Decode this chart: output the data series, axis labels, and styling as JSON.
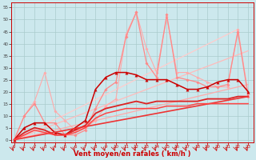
{
  "background_color": "#cce8ed",
  "grid_color": "#aacccc",
  "xlabel": "Vent moyen/en rafales ( km/h )",
  "xlabel_color": "#cc0000",
  "xlabel_fontsize": 6,
  "ytick_labels": [
    "0",
    "5",
    "10",
    "15",
    "20",
    "25",
    "30",
    "35",
    "40",
    "45",
    "50",
    "55"
  ],
  "yticks": [
    0,
    5,
    10,
    15,
    20,
    25,
    30,
    35,
    40,
    45,
    50,
    55
  ],
  "xticks": [
    0,
    1,
    2,
    3,
    4,
    5,
    6,
    7,
    8,
    9,
    10,
    11,
    12,
    13,
    14,
    15,
    16,
    17,
    18,
    19,
    20,
    21,
    22,
    23
  ],
  "xlim": [
    -0.3,
    23.5
  ],
  "ylim": [
    -1,
    57
  ],
  "series": [
    {
      "x": [
        0,
        23
      ],
      "y": [
        0,
        23
      ],
      "color": "#ffaaaa",
      "lw": 0.9,
      "marker": null,
      "ls": "-"
    },
    {
      "x": [
        0,
        23
      ],
      "y": [
        0,
        37
      ],
      "color": "#ffbbbb",
      "lw": 0.9,
      "marker": null,
      "ls": "-"
    },
    {
      "x": [
        0,
        22
      ],
      "y": [
        0,
        46
      ],
      "color": "#ffcccc",
      "lw": 0.9,
      "marker": null,
      "ls": "-"
    },
    {
      "x": [
        0,
        1,
        2,
        3,
        4,
        5,
        6,
        7,
        8,
        9,
        10,
        11,
        12,
        13,
        14,
        15,
        16,
        17,
        18,
        19,
        20,
        21,
        22,
        23
      ],
      "y": [
        0,
        10,
        16,
        28,
        12,
        8,
        4,
        5,
        8,
        14,
        17,
        44,
        53,
        38,
        28,
        51,
        28,
        28,
        26,
        24,
        22,
        22,
        46,
        19
      ],
      "color": "#ffaaaa",
      "lw": 0.8,
      "marker": "D",
      "marker_size": 1.8,
      "ls": "-"
    },
    {
      "x": [
        0,
        1,
        2,
        3,
        4,
        5,
        6,
        7,
        8,
        9,
        10,
        11,
        12,
        13,
        14,
        15,
        16,
        17,
        18,
        19,
        20,
        21,
        22,
        23
      ],
      "y": [
        0,
        10,
        15,
        7,
        7,
        2,
        2,
        4,
        13,
        21,
        24,
        43,
        53,
        32,
        26,
        52,
        26,
        25,
        24,
        22,
        22,
        23,
        45,
        18
      ],
      "color": "#ff8888",
      "lw": 0.9,
      "marker": "D",
      "marker_size": 1.8,
      "ls": "-"
    },
    {
      "x": [
        0,
        1,
        2,
        3,
        4,
        5,
        6,
        7,
        8,
        9,
        10,
        11,
        12,
        13,
        14,
        15,
        16,
        17,
        18,
        19,
        20,
        21,
        22,
        23
      ],
      "y": [
        0,
        5,
        7,
        7,
        3,
        2,
        5,
        8,
        21,
        26,
        28,
        28,
        27,
        25,
        25,
        25,
        23,
        21,
        21,
        22,
        24,
        25,
        25,
        20
      ],
      "color": "#cc0000",
      "lw": 1.1,
      "marker": "^",
      "marker_size": 2.5,
      "ls": "-"
    },
    {
      "x": [
        0,
        1,
        2,
        3,
        4,
        5,
        6,
        7,
        8,
        9,
        10,
        11,
        12,
        13,
        14,
        15,
        16,
        17,
        18,
        19,
        20,
        21,
        22,
        23
      ],
      "y": [
        0,
        3,
        5,
        4,
        2,
        2,
        4,
        6,
        11,
        13,
        14,
        15,
        16,
        15,
        16,
        16,
        16,
        16,
        16,
        17,
        17,
        17,
        18,
        18
      ],
      "color": "#dd2222",
      "lw": 1.3,
      "marker": null,
      "ls": "-"
    },
    {
      "x": [
        0,
        23
      ],
      "y": [
        0,
        18
      ],
      "color": "#ee3333",
      "lw": 1.2,
      "marker": null,
      "ls": "-"
    },
    {
      "x": [
        0,
        1,
        2,
        3,
        4,
        5,
        6,
        7,
        8,
        9,
        10,
        11,
        12,
        13,
        14,
        15,
        16,
        17,
        18,
        19,
        20,
        21,
        22,
        23
      ],
      "y": [
        0,
        2,
        4,
        3,
        2,
        2,
        3,
        5,
        9,
        11,
        12,
        13,
        13,
        13,
        13,
        14,
        14,
        14,
        15,
        15,
        15,
        15,
        15,
        15
      ],
      "color": "#ff4444",
      "lw": 1.1,
      "marker": null,
      "ls": "-"
    }
  ],
  "arrow_color": "#cc0000",
  "spine_color": "#cc0000"
}
